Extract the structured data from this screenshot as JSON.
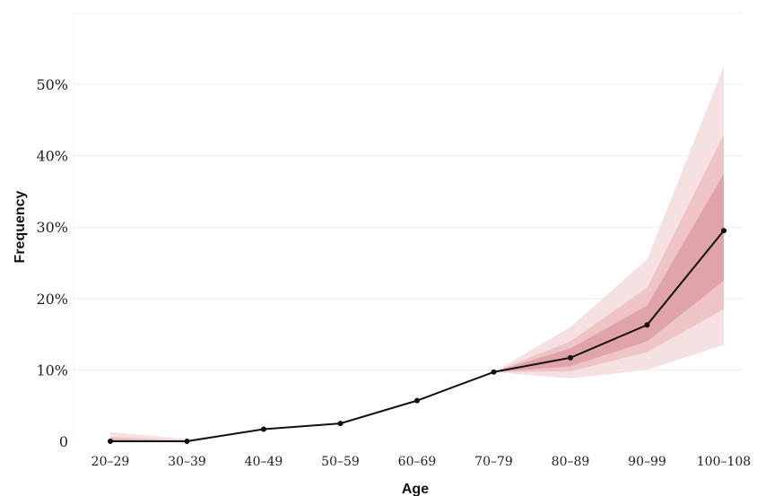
{
  "chart_data": {
    "type": "line",
    "xlabel": "Age",
    "ylabel": "Frequency",
    "categories": [
      "20–29",
      "30–39",
      "40–49",
      "50–59",
      "60–69",
      "70–79",
      "80–89",
      "90–99",
      "100–108"
    ],
    "y_ticks": [
      {
        "value": 0,
        "label": "0"
      },
      {
        "value": 10,
        "label": "10%"
      },
      {
        "value": 20,
        "label": "20%"
      },
      {
        "value": 30,
        "label": "30%"
      },
      {
        "value": 40,
        "label": "40%"
      },
      {
        "value": 50,
        "label": "50%"
      }
    ],
    "ylim": [
      0,
      55
    ],
    "grid": true,
    "series": [
      {
        "values": [
          0,
          0,
          1.7,
          2.5,
          5.7,
          9.7,
          11.7,
          16.3,
          29.5
        ]
      }
    ],
    "uncertainty_bands": [
      {
        "level": "outer",
        "lower": [
          0,
          0,
          1.7,
          2.5,
          5.7,
          9.7,
          8.8,
          10.0,
          13.5
        ],
        "upper": [
          1.3,
          0.3,
          1.7,
          2.5,
          5.7,
          9.7,
          16.0,
          25.5,
          52.5
        ]
      },
      {
        "level": "middle",
        "lower": [
          0,
          0,
          1.7,
          2.5,
          5.7,
          9.7,
          9.8,
          12.5,
          18.5
        ],
        "upper": [
          0.6,
          0.15,
          1.7,
          2.5,
          5.7,
          9.7,
          14.0,
          21.5,
          43.0
        ]
      },
      {
        "level": "inner",
        "lower": [
          0,
          0,
          1.7,
          2.5,
          5.7,
          9.7,
          10.5,
          14.0,
          22.5
        ],
        "upper": [
          0.3,
          0.05,
          1.7,
          2.5,
          5.7,
          9.7,
          13.0,
          19.0,
          37.5
        ]
      }
    ],
    "colors": {
      "line": "#111111",
      "band_outer": "#f6e1e2",
      "band_middle": "#eec4c6",
      "band_inner": "#e0a4a8"
    }
  }
}
